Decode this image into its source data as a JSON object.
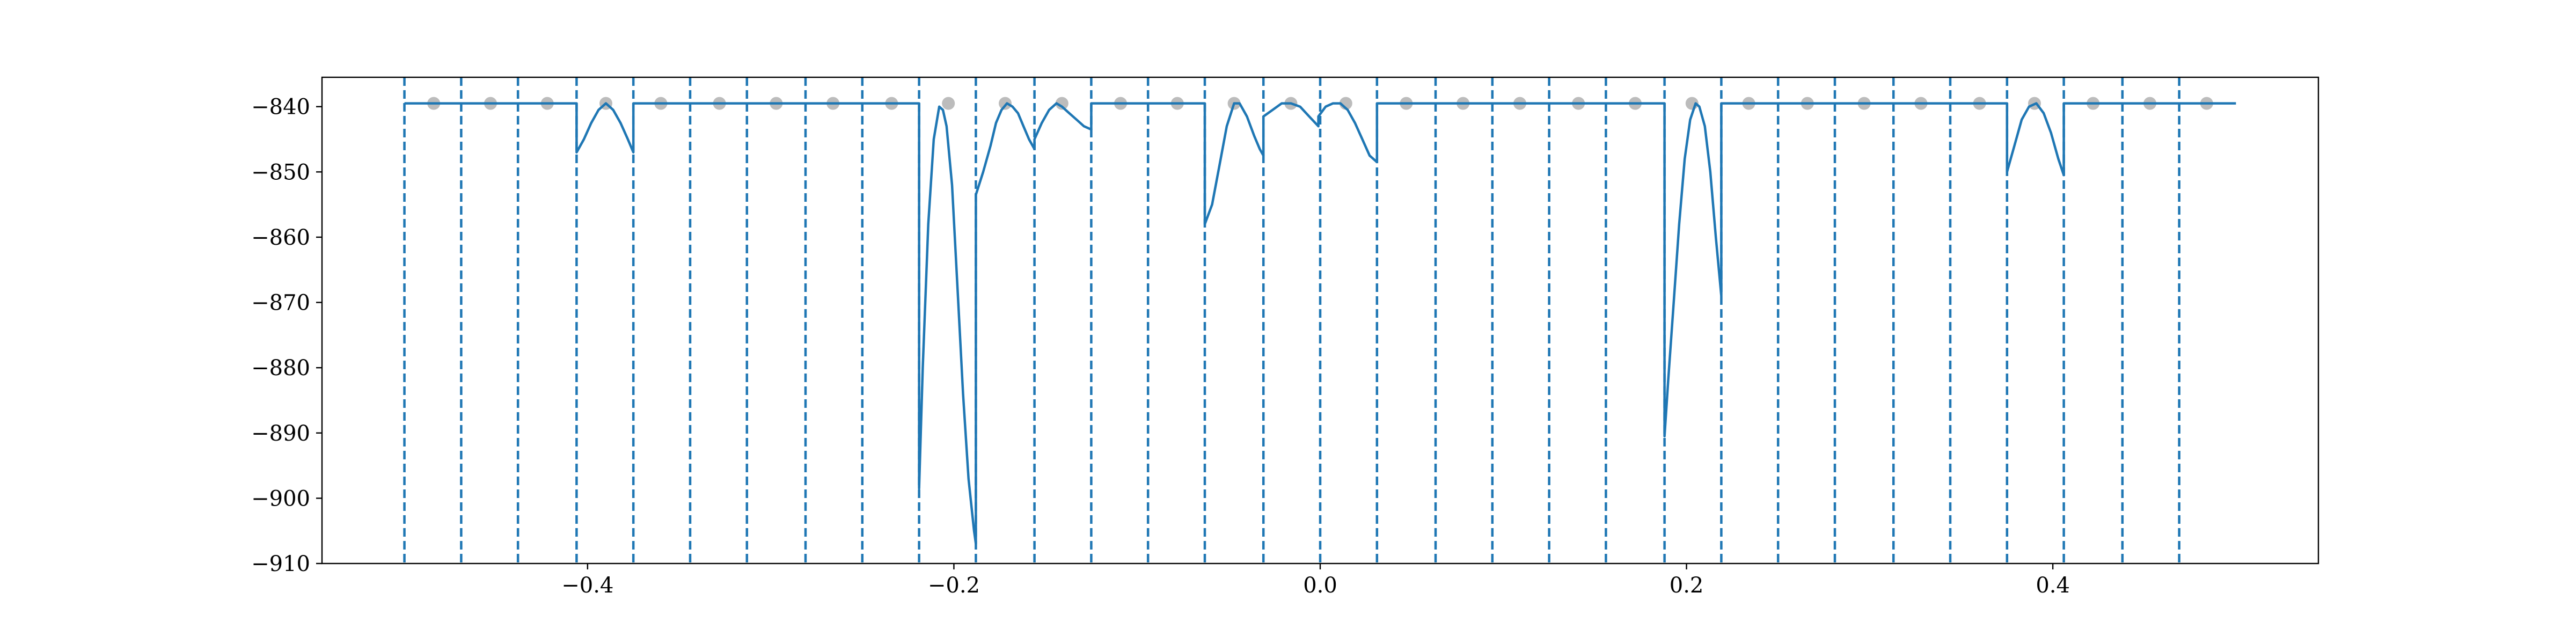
{
  "chart_data": {
    "type": "line",
    "title": "",
    "xlabel": "",
    "ylabel": "",
    "xlim": [
      -0.545,
      0.545
    ],
    "ylim": [
      -910,
      -835.5
    ],
    "grid": false,
    "legend": "none",
    "x_ticks": [
      -0.4,
      -0.2,
      0.0,
      0.2,
      0.4
    ],
    "x_tick_labels": [
      "−0.4",
      "−0.2",
      "0.0",
      "0.2",
      "0.4"
    ],
    "y_ticks": [
      -840,
      -850,
      -860,
      -870,
      -880,
      -890,
      -900,
      -910
    ],
    "y_tick_labels": [
      "−840",
      "−850",
      "−860",
      "−870",
      "−880",
      "−890",
      "−900",
      "−910"
    ],
    "colors": {
      "line": "#1f77b4",
      "markers": "#a0a0a0",
      "axes": "#000000"
    },
    "boundaries": [
      -0.5,
      -0.469,
      -0.438,
      -0.406,
      -0.375,
      -0.344,
      -0.313,
      -0.281,
      -0.25,
      -0.219,
      -0.188,
      -0.156,
      -0.125,
      -0.094,
      -0.063,
      -0.031,
      0.0,
      0.031,
      0.063,
      0.094,
      0.125,
      0.156,
      0.188,
      0.219,
      0.25,
      0.281,
      0.313,
      0.344,
      0.375,
      0.406,
      0.438,
      0.469
    ],
    "markers": {
      "x": [
        -0.484,
        -0.453,
        -0.422,
        -0.39,
        -0.36,
        -0.328,
        -0.297,
        -0.266,
        -0.234,
        -0.203,
        -0.172,
        -0.141,
        -0.109,
        -0.078,
        -0.047,
        -0.016,
        0.014,
        0.047,
        0.078,
        0.109,
        0.141,
        0.172,
        0.203,
        0.234,
        0.266,
        0.297,
        0.328,
        0.36,
        0.39,
        0.422,
        0.453,
        0.484
      ],
      "y": [
        -839.5,
        -839.5,
        -839.5,
        -839.5,
        -839.5,
        -839.5,
        -839.5,
        -839.5,
        -839.5,
        -839.5,
        -839.5,
        -839.5,
        -839.5,
        -839.5,
        -839.5,
        -839.5,
        -839.5,
        -839.5,
        -839.5,
        -839.5,
        -839.5,
        -839.5,
        -839.5,
        -839.5,
        -839.5,
        -839.5,
        -839.5,
        -839.5,
        -839.5,
        -839.5,
        -839.5,
        -839.5
      ]
    },
    "series": [
      {
        "segments": [
          {
            "x": [
              -0.5,
              -0.469,
              -0.438,
              -0.406
            ],
            "y": [
              -839.5,
              -839.5,
              -839.5,
              -839.5
            ]
          },
          {
            "x": [
              -0.406,
              -0.402,
              -0.398,
              -0.394,
              -0.39,
              -0.386,
              -0.382,
              -0.378,
              -0.375
            ],
            "y": [
              -847,
              -845,
              -842.5,
              -840.5,
              -839.5,
              -840.5,
              -842.5,
              -845,
              -847
            ]
          },
          {
            "x": [
              -0.375,
              -0.344,
              -0.313,
              -0.281,
              -0.25,
              -0.219
            ],
            "y": [
              -839.5,
              -839.5,
              -839.5,
              -839.5,
              -839.5,
              -839.5
            ]
          },
          {
            "x": [
              -0.219,
              -0.217,
              -0.214,
              -0.211,
              -0.208,
              -0.206,
              -0.204,
              -0.201,
              -0.198,
              -0.195,
              -0.192,
              -0.189,
              -0.188
            ],
            "y": [
              -898.5,
              -880,
              -858,
              -845,
              -840,
              -840.5,
              -843,
              -852,
              -868,
              -884,
              -897,
              -905,
              -907
            ]
          },
          {
            "x": [
              -0.188,
              -0.184,
              -0.18,
              -0.177,
              -0.174,
              -0.171,
              -0.168,
              -0.165,
              -0.162,
              -0.159,
              -0.156
            ],
            "y": [
              -853.5,
              -850,
              -846,
              -842.5,
              -840.5,
              -839.5,
              -840,
              -841,
              -843,
              -845,
              -846.5
            ]
          },
          {
            "x": [
              -0.156,
              -0.152,
              -0.148,
              -0.144,
              -0.141,
              -0.137,
              -0.133,
              -0.129,
              -0.125
            ],
            "y": [
              -845,
              -842.5,
              -840.5,
              -839.5,
              -840,
              -841,
              -842,
              -843,
              -843.5
            ]
          },
          {
            "x": [
              -0.125,
              -0.094,
              -0.063
            ],
            "y": [
              -839.5,
              -839.5,
              -839.5
            ]
          },
          {
            "x": [
              -0.063,
              -0.059,
              -0.055,
              -0.051,
              -0.047,
              -0.044,
              -0.04,
              -0.036,
              -0.033,
              -0.031
            ],
            "y": [
              -858,
              -855,
              -849,
              -843,
              -839.5,
              -839.5,
              -841.5,
              -844.5,
              -846.5,
              -847.5
            ]
          },
          {
            "x": [
              -0.031,
              -0.026,
              -0.021,
              -0.016,
              -0.011,
              -0.006,
              -0.001
            ],
            "y": [
              -841.5,
              -840.5,
              -839.5,
              -839.5,
              -840,
              -841.5,
              -843
            ]
          },
          {
            "x": [
              -0.001,
              0.003,
              0.007,
              0.011,
              0.015,
              0.019,
              0.023,
              0.027,
              0.031
            ],
            "y": [
              -841.5,
              -840,
              -839.5,
              -839.5,
              -840.5,
              -842.5,
              -845,
              -847.5,
              -848.5
            ]
          },
          {
            "x": [
              0.031,
              0.063,
              0.094,
              0.125,
              0.156,
              0.188
            ],
            "y": [
              -839.5,
              -839.5,
              -839.5,
              -839.5,
              -839.5,
              -839.5
            ]
          },
          {
            "x": [
              0.188,
              0.19,
              0.193,
              0.196,
              0.199,
              0.202,
              0.205,
              0.207,
              0.21,
              0.213,
              0.216,
              0.219
            ],
            "y": [
              -890.5,
              -882,
              -870,
              -858,
              -848,
              -842,
              -839.5,
              -840,
              -843,
              -850,
              -860,
              -869
            ]
          },
          {
            "x": [
              0.219,
              0.25,
              0.281,
              0.313,
              0.344,
              0.375
            ],
            "y": [
              -839.5,
              -839.5,
              -839.5,
              -839.5,
              -839.5,
              -839.5
            ]
          },
          {
            "x": [
              0.375,
              0.379,
              0.383,
              0.387,
              0.391,
              0.395,
              0.399,
              0.403,
              0.406
            ],
            "y": [
              -850,
              -846,
              -842,
              -840,
              -839.5,
              -841,
              -844,
              -848,
              -850.5
            ]
          },
          {
            "x": [
              0.406,
              0.438,
              0.469,
              0.5
            ],
            "y": [
              -839.5,
              -839.5,
              -839.5,
              -839.5
            ]
          }
        ]
      }
    ]
  }
}
